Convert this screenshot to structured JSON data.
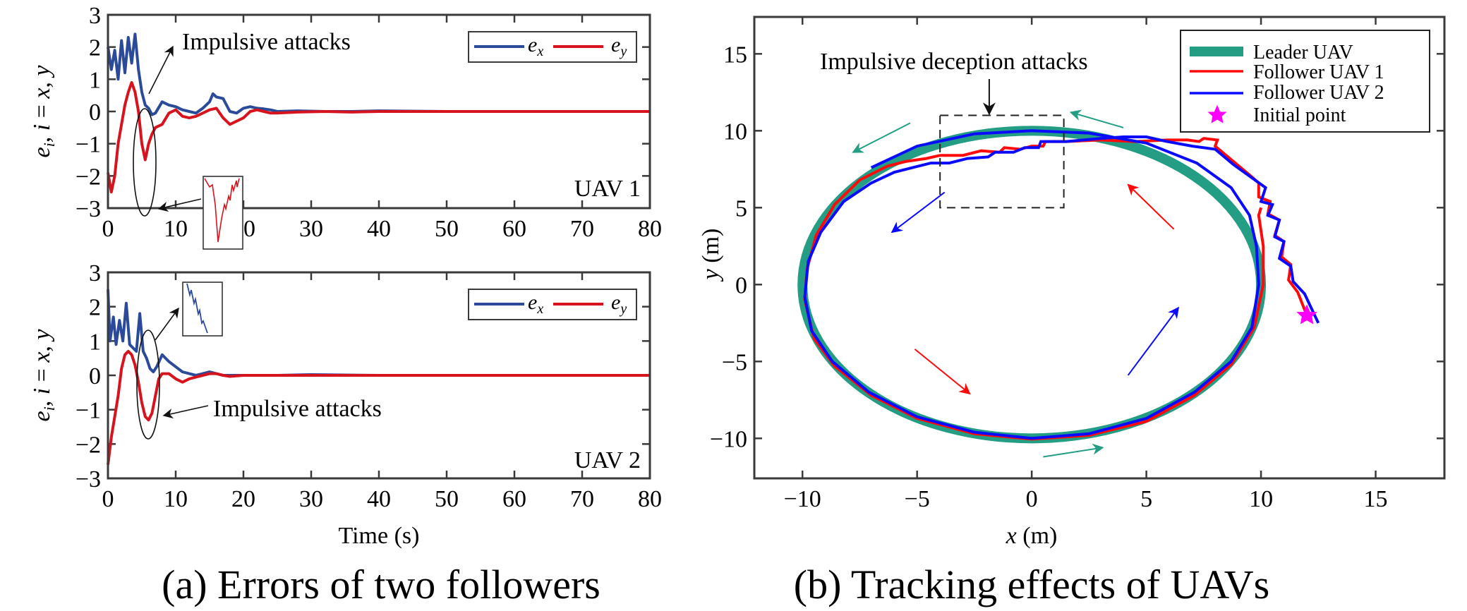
{
  "colors": {
    "ex": "#2c4a9a",
    "ey": "#d7141e",
    "leader": "#239e84",
    "follower1": "#ff0a0a",
    "follower2": "#0a0aff",
    "initial": "#ff00ff",
    "axis": "#3a3a3a"
  },
  "captions": {
    "a": "(a) Errors of two followers",
    "b": "(b) Tracking effects of UAVs"
  },
  "chart_data": [
    {
      "id": "uav1",
      "type": "line",
      "title": "",
      "panel_label": "UAV 1",
      "xlabel": "",
      "ylabel": "e_i, i = x, y",
      "xlim": [
        0,
        80
      ],
      "ylim": [
        -3,
        3
      ],
      "xticks": [
        0,
        10,
        20,
        30,
        40,
        50,
        60,
        70,
        80
      ],
      "yticks": [
        -3,
        -2,
        -1,
        0,
        1,
        2,
        3
      ],
      "legend": {
        "position": "top-right",
        "entries": [
          "e_x",
          "e_y"
        ]
      },
      "annotation": "Impulsive attacks",
      "series": [
        {
          "name": "e_x",
          "x": [
            0,
            0.5,
            1,
            1.5,
            2,
            2.5,
            3,
            3.5,
            4,
            4.5,
            5,
            5.5,
            6,
            6.5,
            7,
            8,
            9,
            10,
            11,
            12,
            13,
            14,
            15,
            15.5,
            16,
            17,
            18,
            19,
            20,
            21,
            22,
            23,
            24,
            25,
            28,
            32,
            36,
            40,
            50,
            60,
            80
          ],
          "y": [
            2.0,
            1.3,
            1.9,
            1.0,
            2.2,
            1.2,
            2.3,
            1.5,
            2.4,
            1.3,
            0.6,
            0.2,
            0.1,
            -0.1,
            -0.05,
            0.3,
            0.2,
            0.15,
            0.05,
            0.0,
            -0.05,
            0.1,
            0.3,
            0.55,
            0.45,
            0.4,
            0.0,
            -0.05,
            0.1,
            0.15,
            0.1,
            0.08,
            0.05,
            0.0,
            0.02,
            0.0,
            0.0,
            0.02,
            0.0,
            0.0,
            0.0
          ]
        },
        {
          "name": "e_y",
          "x": [
            0,
            0.5,
            1,
            1.5,
            2,
            2.5,
            3,
            3.5,
            4,
            4.5,
            5,
            5.5,
            6,
            6.5,
            7,
            8,
            9,
            10,
            11,
            12,
            13,
            14,
            15,
            16,
            17,
            18,
            19,
            20,
            21,
            22,
            23,
            24,
            25,
            28,
            32,
            36,
            40,
            50,
            60,
            80
          ],
          "y": [
            -1.9,
            -2.5,
            -2.0,
            -1.0,
            -0.4,
            0.2,
            0.6,
            0.9,
            0.6,
            0.0,
            -1.0,
            -1.5,
            -1.0,
            -0.7,
            -0.5,
            -0.4,
            -0.05,
            0.05,
            -0.15,
            -0.2,
            -0.15,
            -0.05,
            0.05,
            0.1,
            -0.2,
            -0.4,
            -0.3,
            -0.2,
            0.0,
            0.05,
            0.0,
            -0.05,
            -0.05,
            -0.02,
            0.0,
            -0.02,
            0.0,
            0.0,
            0.0,
            0.0
          ]
        }
      ]
    },
    {
      "id": "uav2",
      "type": "line",
      "title": "",
      "panel_label": "UAV 2",
      "xlabel": "Time (s)",
      "ylabel": "e_i, i = x, y",
      "xlim": [
        0,
        80
      ],
      "ylim": [
        -3,
        3
      ],
      "xticks": [
        0,
        10,
        20,
        30,
        40,
        50,
        60,
        70,
        80
      ],
      "yticks": [
        -3,
        -2,
        -1,
        0,
        1,
        2,
        3
      ],
      "legend": {
        "position": "top-right",
        "entries": [
          "e_x",
          "e_y"
        ]
      },
      "annotation": "Impulsive attacks",
      "series": [
        {
          "name": "e_x",
          "x": [
            0,
            0.3,
            0.8,
            1.2,
            1.7,
            2.2,
            2.7,
            3.2,
            3.7,
            4.2,
            4.7,
            5.2,
            5.7,
            6.2,
            6.7,
            7.2,
            8,
            9,
            10,
            11,
            12,
            13,
            14,
            15,
            16,
            17,
            18,
            20,
            25,
            30,
            40,
            50,
            80
          ],
          "y": [
            2.5,
            1.0,
            1.7,
            0.9,
            1.6,
            1.0,
            2.1,
            0.9,
            0.8,
            0.7,
            1.8,
            0.7,
            0.5,
            0.2,
            0.1,
            0.25,
            0.6,
            0.4,
            0.25,
            0.1,
            0.05,
            0.0,
            0.05,
            0.1,
            0.05,
            0.0,
            0.0,
            0.0,
            0.0,
            0.02,
            0.0,
            0.0,
            0.0
          ]
        },
        {
          "name": "e_y",
          "x": [
            0,
            0.5,
            1,
            1.5,
            2,
            2.5,
            3,
            3.5,
            4,
            4.5,
            5,
            5.5,
            6,
            6.5,
            7,
            7.5,
            8,
            9,
            10,
            11,
            12,
            13,
            14,
            15,
            16,
            17,
            18,
            20,
            25,
            30,
            40,
            50,
            80
          ],
          "y": [
            -2.6,
            -1.8,
            -1.2,
            -0.6,
            0.2,
            0.6,
            0.7,
            0.6,
            0.3,
            -0.2,
            -0.8,
            -1.2,
            -1.3,
            -1.1,
            -0.6,
            -0.1,
            0.05,
            0.05,
            -0.1,
            -0.2,
            -0.1,
            -0.05,
            0.0,
            0.05,
            0.05,
            0.0,
            -0.03,
            0.0,
            0.0,
            0.0,
            0.0,
            0.0,
            0.0
          ]
        }
      ]
    },
    {
      "id": "tracking",
      "type": "line",
      "title": "",
      "xlabel": "x (m)",
      "ylabel": "y (m)",
      "xlim": [
        -12.1,
        18
      ],
      "ylim": [
        -12.6,
        17.4
      ],
      "xticks": [
        -10,
        -5,
        0,
        5,
        10,
        15
      ],
      "yticks": [
        -10,
        -5,
        0,
        5,
        10,
        15
      ],
      "legend": {
        "position": "top-right",
        "entries": [
          "Leader UAV",
          "Follower UAV 1",
          "Follower UAV 2",
          "Initial point"
        ]
      },
      "annotation": "Impulsive deception attacks",
      "attack_region": {
        "x": [
          -4,
          1.4
        ],
        "y": [
          5,
          11
        ]
      },
      "leader": {
        "name": "Leader UAV",
        "shape": "circle",
        "center": [
          0,
          0
        ],
        "radius": 10
      },
      "initial_point": {
        "name": "Initial point",
        "x": 12,
        "y": -2
      },
      "series": [
        {
          "name": "Follower UAV 1",
          "x": [
            12,
            11.6,
            11.2,
            11.3,
            10.9,
            11.0,
            10.6,
            10.8,
            10.3,
            10.4,
            9.9,
            9.9,
            9.6,
            8.0,
            8.1,
            7.5,
            7.3,
            6.8,
            5.9,
            4.5,
            3.0,
            1.5,
            0.6,
            0.5,
            0.0,
            -0.5,
            -1.2,
            -1.4,
            -2.2,
            -3.0,
            -4.0,
            -4.6,
            -5.5,
            -6.3,
            -7.5,
            -8.6,
            -9.4,
            -9.8,
            -9.9,
            -9.5,
            -8.6,
            -7.0,
            -5.0,
            -2.5,
            0,
            2.5,
            5.0,
            7.1,
            8.7,
            9.7,
            10.1,
            10.1,
            9.9,
            10.0
          ],
          "y": [
            -2,
            -0.5,
            0.3,
            1.3,
            1.8,
            2.8,
            3.2,
            4.2,
            4.6,
            5.4,
            5.7,
            6.6,
            7.0,
            9.0,
            9.4,
            9.5,
            9.3,
            9.4,
            9.4,
            9.3,
            9.4,
            9.3,
            9.3,
            9.0,
            9.0,
            8.8,
            8.9,
            8.6,
            8.7,
            8.4,
            8.4,
            8.2,
            8.0,
            7.7,
            6.8,
            5.2,
            3.2,
            1.0,
            -1.0,
            -3.5,
            -5.3,
            -7.2,
            -8.7,
            -9.7,
            -10.05,
            -9.8,
            -8.9,
            -7.2,
            -5.2,
            -2.8,
            0,
            2.5,
            4.5,
            5.0
          ]
        },
        {
          "name": "Follower UAV 2",
          "x": [
            12.5,
            11.9,
            11.4,
            11.3,
            10.8,
            11.0,
            10.6,
            10.8,
            10.3,
            10.5,
            10.0,
            10.2,
            8.8,
            8.0,
            7.0,
            5.9,
            5.0,
            4.0,
            3.0,
            1.5,
            0.4,
            0.3,
            -0.3,
            -0.8,
            -1.6,
            -1.9,
            -2.8,
            -3.6,
            -4.4,
            -5.2,
            -6.0,
            -7.0,
            -8.2,
            -9.2,
            -9.75,
            -9.9,
            -9.6,
            -8.7,
            -7.1,
            -5.0,
            -2.5,
            0,
            2.5,
            5.0,
            7.1,
            8.7,
            9.6,
            9.9,
            9.8,
            9.5,
            8.7,
            7.2,
            5.0,
            2.5,
            0,
            -2.5,
            -5.0,
            -7.0
          ],
          "y": [
            -2.5,
            -0.6,
            0.2,
            1.2,
            1.7,
            2.8,
            3.1,
            4.2,
            4.5,
            5.2,
            5.4,
            6.3,
            7.8,
            8.8,
            9.0,
            9.3,
            9.6,
            9.6,
            9.5,
            9.3,
            9.3,
            8.9,
            8.9,
            8.6,
            8.6,
            8.3,
            8.2,
            7.9,
            7.9,
            7.6,
            7.3,
            6.6,
            5.4,
            3.4,
            1.5,
            -0.8,
            -3.0,
            -5.0,
            -7.0,
            -8.6,
            -9.6,
            -10.0,
            -9.7,
            -8.7,
            -7.0,
            -5.0,
            -2.8,
            0,
            2.5,
            4.5,
            6.3,
            7.9,
            9.2,
            9.85,
            10.0,
            9.8,
            9.0,
            7.6
          ]
        }
      ],
      "direction_arrows": [
        {
          "color": "leader",
          "from": [
            4,
            10.2
          ],
          "to": [
            1.7,
            11.2
          ]
        },
        {
          "color": "leader",
          "from": [
            -5.3,
            10.5
          ],
          "to": [
            -7.8,
            8.6
          ]
        },
        {
          "color": "leader",
          "from": [
            0.5,
            -11.2
          ],
          "to": [
            3.1,
            -10.6
          ]
        },
        {
          "color": "follower1",
          "from": [
            6.2,
            3.6
          ],
          "to": [
            4.2,
            6.5
          ]
        },
        {
          "color": "follower1",
          "from": [
            -5.1,
            -4.2
          ],
          "to": [
            -2.7,
            -7.1
          ]
        },
        {
          "color": "follower2",
          "from": [
            -3.8,
            6.0
          ],
          "to": [
            -6.1,
            3.4
          ]
        },
        {
          "color": "follower2",
          "from": [
            4.2,
            -5.9
          ],
          "to": [
            6.4,
            -1.5
          ]
        }
      ]
    }
  ]
}
